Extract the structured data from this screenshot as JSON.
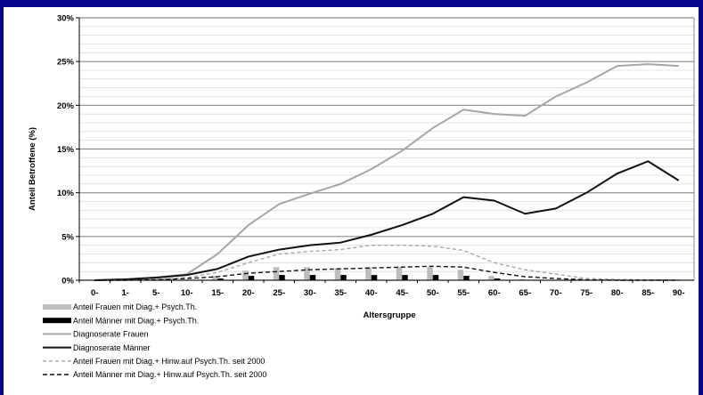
{
  "colors": {
    "background": "#06068f",
    "bars_women": "#bdbdbd",
    "bars_men": "#000000",
    "line_women": "#a6a6a6",
    "line_men": "#111111",
    "dashed_women": "#a6a6a6",
    "dashed_men": "#111111"
  },
  "chart_data": {
    "type": "bar+line",
    "title": "",
    "xlabel": "Altersgruppe",
    "ylabel": "Anteil Betroffene (%)",
    "ylim": [
      0,
      30
    ],
    "y_ticks": [
      "0%",
      "5%",
      "10%",
      "15%",
      "20%",
      "25%",
      "30%"
    ],
    "grid": true,
    "legend_position": "bottom-left",
    "categories": [
      "0-",
      "1-",
      "5-",
      "10-",
      "15-",
      "20-",
      "25-",
      "30-",
      "35-",
      "40-",
      "45-",
      "50-",
      "55-",
      "60-",
      "65-",
      "70-",
      "75-",
      "80-",
      "85-",
      "90-"
    ],
    "series": [
      {
        "name": "Anteil Frauen mit Diag.+ Psych.Th.",
        "kind": "bar",
        "color": "#bdbdbd",
        "values": [
          0,
          0,
          0.02,
          0.1,
          0.5,
          1.1,
          1.5,
          1.5,
          1.4,
          1.5,
          1.5,
          1.5,
          1.2,
          0.5,
          0.15,
          0.05,
          0,
          0,
          0,
          0
        ]
      },
      {
        "name": "Anteil Männer mit Diag.+ Psych.Th.",
        "kind": "bar",
        "color": "#000000",
        "values": [
          0,
          0,
          0.01,
          0.05,
          0.2,
          0.5,
          0.6,
          0.6,
          0.6,
          0.6,
          0.6,
          0.6,
          0.5,
          0.2,
          0.05,
          0.02,
          0,
          0,
          0,
          0
        ]
      },
      {
        "name": "Diagnoserate Frauen",
        "kind": "line",
        "color": "#a6a6a6",
        "dash": "",
        "values": [
          0,
          0.1,
          0.3,
          0.7,
          3.0,
          6.3,
          8.7,
          9.9,
          11.0,
          12.7,
          14.8,
          17.4,
          19.5,
          19.0,
          18.8,
          21.0,
          22.6,
          24.5,
          24.7,
          24.5
        ]
      },
      {
        "name": "Diagnoserate Männer",
        "kind": "line",
        "color": "#111111",
        "dash": "",
        "values": [
          0,
          0.1,
          0.3,
          0.6,
          1.3,
          2.7,
          3.5,
          4.0,
          4.3,
          5.2,
          6.3,
          7.6,
          9.5,
          9.1,
          7.6,
          8.2,
          10.0,
          12.2,
          13.6,
          11.4
        ]
      },
      {
        "name": "Anteil Frauen mit Diag.+ Hinw.auf Psych.Th. seit 2000",
        "kind": "line",
        "color": "#a6a6a6",
        "dash": "4,3",
        "values": [
          0,
          0,
          0.1,
          0.3,
          0.9,
          2.0,
          3.0,
          3.3,
          3.5,
          4.0,
          4.0,
          3.9,
          3.4,
          2.0,
          1.2,
          0.7,
          0.2,
          0.1,
          0.05,
          0
        ]
      },
      {
        "name": "Anteil Männer mit Diag.+ Hinw.auf Psych.Th. seit 2000",
        "kind": "line",
        "color": "#111111",
        "dash": "5,3",
        "values": [
          0,
          0,
          0.05,
          0.2,
          0.4,
          0.8,
          1.0,
          1.2,
          1.3,
          1.4,
          1.5,
          1.6,
          1.5,
          0.9,
          0.4,
          0.2,
          0.05,
          0,
          0,
          0
        ]
      }
    ]
  }
}
